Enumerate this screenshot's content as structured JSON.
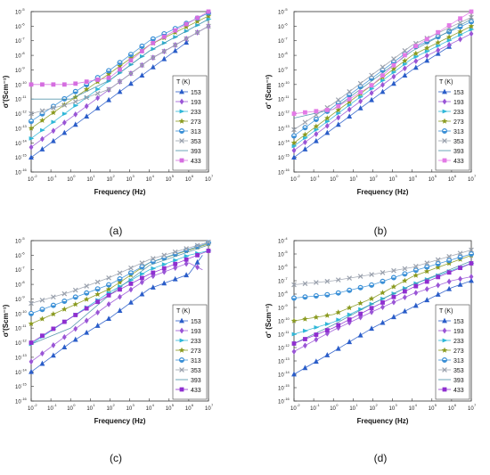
{
  "figure": {
    "colors": {
      "153": "#2a5dc9",
      "193": "#9a55d6",
      "233": "#2fb7d8",
      "273": "#8a9a1f",
      "313": "#3a8fd6",
      "353": "#9aa1ad",
      "393": "#4a8fa6",
      "433": "#8f2fd0",
      "433_a": "#d56ee0",
      "393_b": "#e37ae6"
    },
    "tick_labels": [
      "10-2",
      "10-1",
      "100",
      "101",
      "102",
      "103",
      "104",
      "105",
      "106",
      "107"
    ]
  },
  "chart_data": [
    {
      "panel_label": "(a)",
      "type": "scatter",
      "x_scale": "log",
      "y_scale": "log",
      "xlabel": "Frequency (Hz)",
      "ylabel": "σ'(Scm⁻¹)",
      "xlim": [
        0.01,
        10000000
      ],
      "ylim_exp": [
        -16,
        -5
      ],
      "legend_title": "T (K)",
      "legend": [
        "153",
        "193",
        "233",
        "273",
        "313",
        "353",
        "393",
        "433"
      ],
      "series": [
        {
          "name": "153",
          "marker": "triangle-up",
          "x": [
            0.01,
            1,
            100,
            10000,
            1000000
          ],
          "y": [
            1e-15,
            1e-13,
            1e-11,
            1e-09,
            1e-07
          ]
        },
        {
          "name": "193",
          "marker": "diamond",
          "x": [
            0.01,
            1,
            100,
            10000,
            10000000
          ],
          "y": [
            5e-15,
            5e-13,
            5e-11,
            5e-09,
            1e-06
          ]
        },
        {
          "name": "233",
          "marker": "triangle-right",
          "x": [
            0.01,
            1,
            100,
            10000,
            10000000
          ],
          "y": [
            2e-14,
            2e-12,
            2e-10,
            2e-08,
            3e-06
          ]
        },
        {
          "name": "273",
          "marker": "star",
          "x": [
            0.01,
            1,
            100,
            10000,
            10000000
          ],
          "y": [
            1e-13,
            8e-12,
            6e-10,
            5e-08,
            5e-06
          ]
        },
        {
          "name": "313",
          "marker": "circle-half",
          "x": [
            0.01,
            1,
            100,
            10000,
            10000000
          ],
          "y": [
            3e-13,
            2e-11,
            1e-09,
            1e-07,
            8e-06
          ]
        },
        {
          "name": "353",
          "marker": "x",
          "x": [
            0.01,
            1,
            100,
            10000,
            10000000
          ],
          "y": [
            1e-12,
            5e-12,
            5e-11,
            5e-09,
            1e-06
          ]
        },
        {
          "name": "393",
          "marker": "line",
          "x": [
            0.01,
            1,
            100,
            10000,
            10000000
          ],
          "y": [
            1e-11,
            1e-11,
            2e-10,
            2e-08,
            3e-06
          ]
        },
        {
          "name": "433",
          "marker": "square",
          "x": [
            0.01,
            1,
            100,
            10000,
            10000000
          ],
          "y": [
            1e-10,
            1e-10,
            3e-10,
            5e-08,
            1e-05
          ]
        }
      ]
    },
    {
      "panel_label": "(b)",
      "type": "scatter",
      "x_scale": "log",
      "y_scale": "log",
      "xlabel": "Frequency (Hz)",
      "ylabel": "σ' (Scm⁻¹)",
      "xlim": [
        0.01,
        10000000
      ],
      "ylim_exp": [
        -16,
        -5
      ],
      "legend_title": "T (K)",
      "legend": [
        "153",
        "193",
        "233",
        "273",
        "313",
        "353",
        "393",
        "433"
      ],
      "series": [
        {
          "name": "153",
          "marker": "triangle-up",
          "x": [
            0.01,
            1,
            100,
            10000,
            1000000
          ],
          "y": [
            1e-15,
            1e-13,
            1e-11,
            1e-09,
            5e-08
          ]
        },
        {
          "name": "193",
          "marker": "diamond",
          "x": [
            0.01,
            1,
            100,
            10000,
            10000000
          ],
          "y": [
            3e-15,
            3e-13,
            3e-11,
            3e-09,
            3e-07
          ]
        },
        {
          "name": "233",
          "marker": "triangle-right",
          "x": [
            0.01,
            1,
            100,
            10000,
            10000000
          ],
          "y": [
            6e-15,
            6e-13,
            6e-11,
            6e-09,
            6e-07
          ]
        },
        {
          "name": "273",
          "marker": "star",
          "x": [
            0.01,
            1,
            100,
            10000,
            10000000
          ],
          "y": [
            1e-14,
            1e-12,
            1e-10,
            1e-08,
            1e-06
          ]
        },
        {
          "name": "313",
          "marker": "circle-half",
          "x": [
            0.01,
            1,
            100,
            10000,
            10000000
          ],
          "y": [
            3e-14,
            3e-12,
            3e-10,
            3e-08,
            2e-06
          ]
        },
        {
          "name": "353",
          "marker": "x",
          "x": [
            0.01,
            1,
            100,
            10000,
            10000000
          ],
          "y": [
            8e-14,
            5e-12,
            5e-10,
            5e-08,
            4e-06
          ]
        },
        {
          "name": "393",
          "marker": "line",
          "x": [
            0.01,
            1,
            100,
            10000,
            10000000
          ],
          "y": [
            5e-13,
            2e-12,
            2e-10,
            2e-08,
            3e-06
          ]
        },
        {
          "name": "433",
          "marker": "square",
          "x": [
            0.01,
            1,
            100,
            10000,
            10000000
          ],
          "y": [
            1e-12,
            2e-12,
            1e-10,
            3e-08,
            1e-05
          ]
        }
      ]
    },
    {
      "panel_label": "(c)",
      "type": "scatter",
      "x_scale": "log",
      "y_scale": "log",
      "xlabel": "Frequency (Hz)",
      "ylabel": "σ'(Scm⁻¹)",
      "xlim": [
        0.01,
        10000000
      ],
      "ylim_exp": [
        -16,
        -5
      ],
      "legend_title": "T (K)",
      "legend": [
        "153",
        "193",
        "233",
        "273",
        "313",
        "353",
        "393",
        "433"
      ],
      "series": [
        {
          "name": "153",
          "marker": "triangle-up",
          "x": [
            0.01,
            1,
            100,
            10000,
            1000000,
            5000000
          ],
          "y": [
            1e-14,
            1e-12,
            5e-11,
            5e-09,
            5e-08,
            1e-06
          ]
        },
        {
          "name": "193",
          "marker": "diamond",
          "x": [
            0.01,
            1,
            100,
            10000,
            1000000,
            5000000
          ],
          "y": [
            5e-14,
            5e-12,
            5e-10,
            3e-08,
            3e-07,
            1e-07
          ]
        },
        {
          "name": "233",
          "marker": "triangle-right",
          "x": [
            0.01,
            1,
            100,
            10000,
            1000000,
            10000000
          ],
          "y": [
            8e-13,
            5e-11,
            3e-09,
            1e-07,
            1e-06,
            2e-06
          ]
        },
        {
          "name": "273",
          "marker": "star",
          "x": [
            0.01,
            1,
            100,
            10000,
            10000000
          ],
          "y": [
            2e-11,
            3e-10,
            5e-09,
            3e-07,
            6e-06
          ]
        },
        {
          "name": "313",
          "marker": "circle-half",
          "x": [
            0.01,
            1,
            100,
            10000,
            10000000
          ],
          "y": [
            1e-10,
            1e-09,
            1e-08,
            3e-07,
            7e-06
          ]
        },
        {
          "name": "353",
          "marker": "x",
          "x": [
            0.01,
            1,
            100,
            10000,
            10000000
          ],
          "y": [
            5e-10,
            3e-09,
            3e-08,
            5e-07,
            8e-06
          ]
        },
        {
          "name": "393",
          "marker": "line",
          "x": [
            0.01,
            1,
            100,
            10000,
            10000000
          ],
          "y": [
            8e-13,
            1e-11,
            2e-09,
            2e-07,
            5e-06
          ]
        },
        {
          "name": "433",
          "marker": "square",
          "x": [
            0.01,
            1,
            100,
            10000,
            10000000
          ],
          "y": [
            1e-12,
            5e-11,
            2e-09,
            5e-08,
            2e-06
          ]
        }
      ]
    },
    {
      "panel_label": "(d)",
      "type": "scatter",
      "x_scale": "log",
      "y_scale": "log",
      "xlabel": "Frequency (Hz)",
      "ylabel": "σ' (Scm⁻¹)",
      "xlim": [
        0.01,
        10000000
      ],
      "ylim_exp": [
        -16,
        -4
      ],
      "legend_title": "T (K)",
      "legend": [
        "153",
        "193",
        "233",
        "273",
        "313",
        "353",
        "393",
        "433"
      ],
      "series": [
        {
          "name": "153",
          "marker": "triangle-up",
          "x": [
            0.01,
            1,
            100,
            10000,
            1000000,
            10000000
          ],
          "y": [
            1e-14,
            5e-13,
            3e-11,
            1e-09,
            3e-08,
            1e-07
          ]
        },
        {
          "name": "193",
          "marker": "diamond",
          "x": [
            0.01,
            1,
            100,
            10000,
            1000000,
            10000000
          ],
          "y": [
            5e-13,
            2e-11,
            5e-10,
            1e-08,
            1e-07,
            2e-07
          ]
        },
        {
          "name": "233",
          "marker": "triangle-right",
          "x": [
            0.01,
            1,
            100,
            10000,
            10000000
          ],
          "y": [
            1e-11,
            8e-11,
            2e-09,
            5e-08,
            2e-06
          ]
        },
        {
          "name": "273",
          "marker": "star",
          "x": [
            0.01,
            1,
            100,
            10000,
            10000000
          ],
          "y": [
            1e-10,
            3e-10,
            5e-09,
            2e-07,
            8e-06
          ]
        },
        {
          "name": "313",
          "marker": "circle-half",
          "x": [
            0.01,
            1,
            100,
            10000,
            10000000
          ],
          "y": [
            5e-09,
            1e-08,
            5e-08,
            5e-07,
            1e-05
          ]
        },
        {
          "name": "353",
          "marker": "x",
          "x": [
            0.01,
            1,
            100,
            10000,
            10000000
          ],
          "y": [
            5e-08,
            1e-07,
            3e-07,
            1e-06,
            2e-05
          ]
        },
        {
          "name": "393",
          "marker": "line",
          "x": [
            0.01,
            1,
            100,
            10000,
            10000000
          ],
          "y": [
            2e-12,
            5e-11,
            2e-09,
            5e-08,
            3e-06
          ]
        },
        {
          "name": "433",
          "marker": "square",
          "x": [
            0.01,
            1,
            100,
            10000,
            10000000
          ],
          "y": [
            2e-12,
            3e-11,
            1e-09,
            3e-08,
            2e-06
          ]
        }
      ]
    }
  ]
}
